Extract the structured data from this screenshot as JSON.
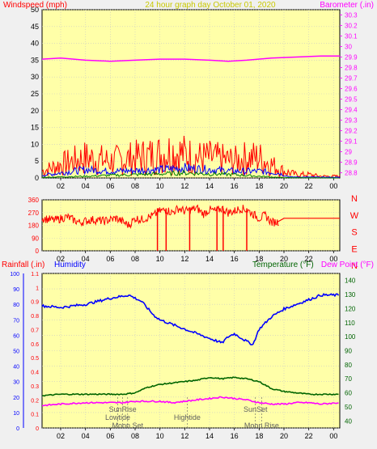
{
  "colors": {
    "background": "#f0f0f0",
    "plot_bg": "#ffffa8",
    "grid": "#c8c8c8",
    "windspeed": "#ff0000",
    "wind_avg": "#0000ff",
    "wind_low": "#008000",
    "barometer": "#ff00ff",
    "direction": "#ff0000",
    "humidity": "#0000ff",
    "temperature": "#006400",
    "dewpoint": "#ff00ff",
    "rainfall": "#ff0000",
    "title": "#c8c800",
    "event_text": "#606060"
  },
  "chart_data": [
    {
      "type": "line",
      "title": "24 hour graph day   October 01, 2020",
      "left_label": "Windspeed (mph)",
      "right_label": "Barometer (.in)",
      "x_ticks": [
        "02",
        "04",
        "06",
        "08",
        "10",
        "12",
        "14",
        "16",
        "18",
        "20",
        "22",
        "00"
      ],
      "y_left_ticks": [
        "0",
        "5",
        "10",
        "15",
        "20",
        "25",
        "30",
        "35",
        "40",
        "45",
        "50"
      ],
      "y_right_ticks": [
        "28.8",
        "28.9",
        "29",
        "29.1",
        "29.2",
        "29.3",
        "29.4",
        "29.5",
        "29.6",
        "29.7",
        "29.8",
        "29.9",
        "30",
        "30.1",
        "30.2",
        "30.3"
      ],
      "ylim_left": [
        0,
        50
      ],
      "ylim_right": [
        28.75,
        30.35
      ],
      "xlim": [
        0.5,
        24.5
      ],
      "series": [
        {
          "name": "Barometer",
          "axis": "right",
          "x": [
            0.5,
            2,
            4,
            6,
            8,
            10,
            12,
            14,
            15.5,
            17,
            19,
            21,
            23,
            24.5
          ],
          "y": [
            29.88,
            29.89,
            29.87,
            29.86,
            29.87,
            29.88,
            29.88,
            29.87,
            29.86,
            29.87,
            29.89,
            29.9,
            29.91,
            29.91
          ]
        },
        {
          "name": "Windspeed gust",
          "axis": "left",
          "x": [
            0.5,
            2,
            4,
            6,
            8,
            10,
            11,
            12,
            13,
            14,
            16,
            17,
            18,
            19,
            20,
            21,
            22,
            23,
            24,
            24.5
          ],
          "y": [
            2,
            4,
            6,
            5,
            6,
            7,
            8,
            7,
            6,
            6,
            5,
            6,
            6,
            4,
            2,
            1,
            1,
            0.5,
            0.5,
            0.5
          ]
        },
        {
          "name": "Windspeed avg",
          "axis": "left",
          "x": [
            0.5,
            2,
            4,
            6,
            8,
            10,
            12,
            14,
            16,
            18,
            19.5,
            20.5,
            24.5
          ],
          "y": [
            0.8,
            1.5,
            2.5,
            2,
            2.2,
            2.5,
            3,
            2.5,
            2,
            2,
            1.5,
            0.3,
            0.2
          ]
        },
        {
          "name": "Windspeed low",
          "axis": "left",
          "x": [
            0.5,
            4,
            6,
            8,
            10,
            12,
            14,
            16,
            18,
            20,
            24.5
          ],
          "y": [
            0.2,
            0.5,
            0.8,
            1,
            1.2,
            1.5,
            1.2,
            1,
            0.5,
            0.1,
            0
          ]
        }
      ]
    },
    {
      "type": "line",
      "right_labels": [
        "N",
        "W",
        "S",
        "E",
        "N"
      ],
      "x_ticks": [
        "02",
        "04",
        "06",
        "08",
        "10",
        "12",
        "14",
        "16",
        "18",
        "20",
        "22",
        "00"
      ],
      "y_ticks": [
        "0",
        "90",
        "180",
        "270",
        "360"
      ],
      "ylim": [
        0,
        360
      ],
      "xlim": [
        0.5,
        24.5
      ],
      "series": [
        {
          "name": "Wind direction",
          "x": [
            0.5,
            1.5,
            2.5,
            3.5,
            4.5,
            5.5,
            6.5,
            7.5,
            8,
            8.5,
            9.5,
            10,
            10.5,
            11,
            11.5,
            12,
            12.5,
            13,
            13.5,
            14,
            14.5,
            15,
            15.5,
            16,
            16.5,
            17,
            17.5,
            18,
            18.5,
            19,
            19.5,
            20,
            21,
            22,
            23,
            24.5
          ],
          "y": [
            230,
            215,
            240,
            200,
            220,
            210,
            230,
            180,
            230,
            220,
            250,
            280,
            290,
            270,
            300,
            280,
            290,
            300,
            260,
            290,
            280,
            300,
            270,
            280,
            300,
            290,
            260,
            230,
            250,
            200,
            205,
            230,
            230,
            230,
            230,
            230
          ]
        }
      ],
      "dropouts": [
        9.8,
        10.5,
        12.4,
        14.6,
        15.1,
        17.0
      ]
    },
    {
      "type": "line",
      "left_label": "Rainfall (.in)",
      "left_label2": "Humidity",
      "right_label": "Temperature (°F)",
      "right_label2": "Dew Point (°F)",
      "x_ticks": [
        "02",
        "04",
        "06",
        "08",
        "10",
        "12",
        "14",
        "16",
        "18",
        "20",
        "22",
        "00"
      ],
      "y_humidity_ticks": [
        "0",
        "10",
        "20",
        "30",
        "40",
        "50",
        "60",
        "70",
        "80",
        "90",
        "100"
      ],
      "y_rain_ticks": [
        "0",
        "0.1",
        "0.2",
        "0.3",
        "0.4",
        "0.5",
        "0.6",
        "0.7",
        "0.8",
        "0.9",
        "1",
        "1.1"
      ],
      "y_temp_ticks": [
        "40",
        "50",
        "60",
        "70",
        "80",
        "90",
        "100",
        "110",
        "120",
        "130",
        "140"
      ],
      "ylim_humidity": [
        0,
        100
      ],
      "ylim_temp": [
        35,
        145
      ],
      "xlim": [
        0.5,
        24.5
      ],
      "series": [
        {
          "name": "Humidity",
          "axis": "humidity",
          "x": [
            0.5,
            2,
            4,
            6,
            7.5,
            8.5,
            9.5,
            10,
            11,
            12,
            13,
            14,
            15,
            15.5,
            16,
            17,
            17.5,
            18,
            19,
            20,
            21,
            22,
            23,
            24.5
          ],
          "y": [
            79,
            78,
            80,
            84,
            86,
            82,
            73,
            70,
            67,
            64,
            61,
            58,
            55,
            59,
            61,
            56,
            54,
            64,
            72,
            77,
            80,
            83,
            86,
            86
          ]
        },
        {
          "name": "Temperature",
          "axis": "temp",
          "x": [
            0.5,
            2,
            4,
            6,
            7,
            8,
            9,
            10,
            11,
            12,
            13,
            14,
            15,
            16,
            17,
            18,
            19,
            20,
            21,
            22,
            23,
            24.5
          ],
          "y": [
            58,
            59,
            59,
            59,
            59,
            60,
            64,
            66,
            67,
            68,
            69,
            71,
            70,
            71,
            70,
            68,
            63,
            61,
            60,
            59,
            59,
            59
          ]
        },
        {
          "name": "Dew Point",
          "axis": "temp",
          "x": [
            0.5,
            2,
            4,
            6,
            7,
            8,
            9,
            10,
            11,
            12,
            13,
            14,
            15,
            16,
            17,
            18,
            19,
            20,
            21,
            22,
            23,
            24.5
          ],
          "y": [
            51,
            52,
            53,
            53,
            53,
            54,
            54,
            54,
            53,
            54,
            55,
            56,
            57,
            56,
            55,
            53,
            52,
            52,
            53,
            53,
            52,
            53
          ]
        }
      ],
      "events": [
        {
          "label": "SunRise",
          "x": 7.0,
          "row": 0
        },
        {
          "label": "Lowtide",
          "x": 6.6,
          "row": 1
        },
        {
          "label": "Moon Set",
          "x": 7.4,
          "row": 2
        },
        {
          "label": "Hightide",
          "x": 12.2,
          "row": 1
        },
        {
          "label": "SunSet",
          "x": 17.7,
          "row": 0
        },
        {
          "label": "Moon Rise",
          "x": 18.2,
          "row": 2
        }
      ]
    }
  ]
}
